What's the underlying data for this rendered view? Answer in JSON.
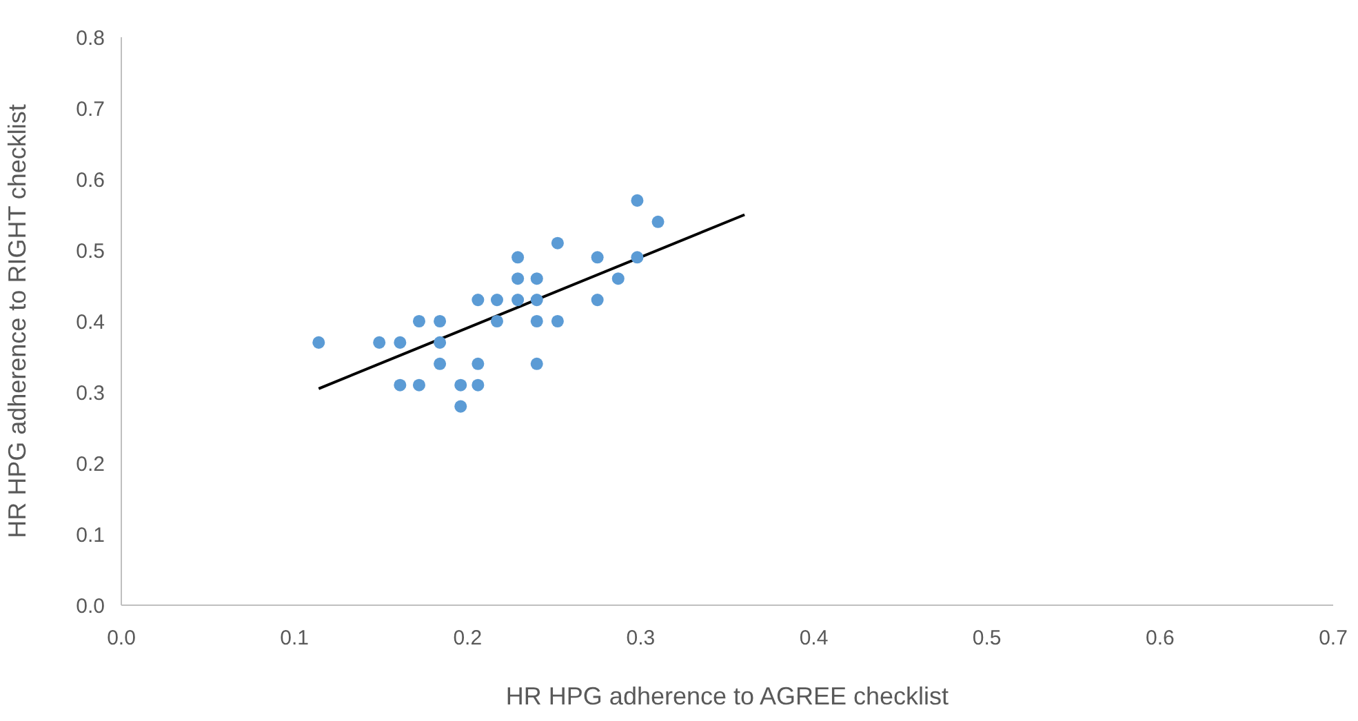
{
  "chart_data": {
    "type": "scatter",
    "xlabel": "HR HPG adherence to AGREE checklist",
    "ylabel": "HR HPG adherence to RIGHT checklist",
    "xlim": [
      0,
      0.7
    ],
    "xticks": [
      {
        "value": 0,
        "label": "0.0"
      },
      {
        "value": 0.1,
        "label": "0.1"
      },
      {
        "value": 0.2,
        "label": "0.2"
      },
      {
        "value": 0.3,
        "label": "0.3"
      },
      {
        "value": 0.4,
        "label": "0.4"
      },
      {
        "value": 0.5,
        "label": "0.5"
      },
      {
        "value": 0.6,
        "label": "0.6"
      },
      {
        "value": 0.7,
        "label": "0.7"
      }
    ],
    "ylim": [
      0,
      0.8
    ],
    "yticks": [
      {
        "value": 0,
        "label": "0.0"
      },
      {
        "value": 0.1,
        "label": "0.1"
      },
      {
        "value": 0.2,
        "label": "0.2"
      },
      {
        "value": 0.3,
        "label": "0.3"
      },
      {
        "value": 0.4,
        "label": "0.4"
      },
      {
        "value": 0.5,
        "label": "0.5"
      },
      {
        "value": 0.6,
        "label": "0.6"
      },
      {
        "value": 0.7,
        "label": "0.7"
      },
      {
        "value": 0.8,
        "label": "0.8"
      }
    ],
    "grid": false,
    "marker": "circle",
    "series": [
      {
        "color": "#5b9bd5",
        "x": [
          0.114,
          0.149,
          0.161,
          0.161,
          0.172,
          0.172,
          0.184,
          0.184,
          0.184,
          0.196,
          0.196,
          0.206,
          0.206,
          0.206,
          0.217,
          0.217,
          0.229,
          0.229,
          0.229,
          0.24,
          0.24,
          0.24,
          0.24,
          0.252,
          0.252,
          0.275,
          0.275,
          0.287,
          0.298,
          0.298,
          0.31
        ],
        "values": [
          0.37,
          0.37,
          0.37,
          0.31,
          0.31,
          0.4,
          0.4,
          0.37,
          0.34,
          0.31,
          0.28,
          0.31,
          0.34,
          0.43,
          0.43,
          0.4,
          0.49,
          0.46,
          0.43,
          0.46,
          0.43,
          0.4,
          0.34,
          0.51,
          0.4,
          0.49,
          0.43,
          0.46,
          0.57,
          0.49,
          0.54
        ]
      },
      {
        "type": "line",
        "color": "#000000",
        "x": [
          0.114,
          0.36
        ],
        "values": [
          0.305,
          0.55
        ],
        "marker": "none",
        "line_style": "solid"
      }
    ]
  }
}
